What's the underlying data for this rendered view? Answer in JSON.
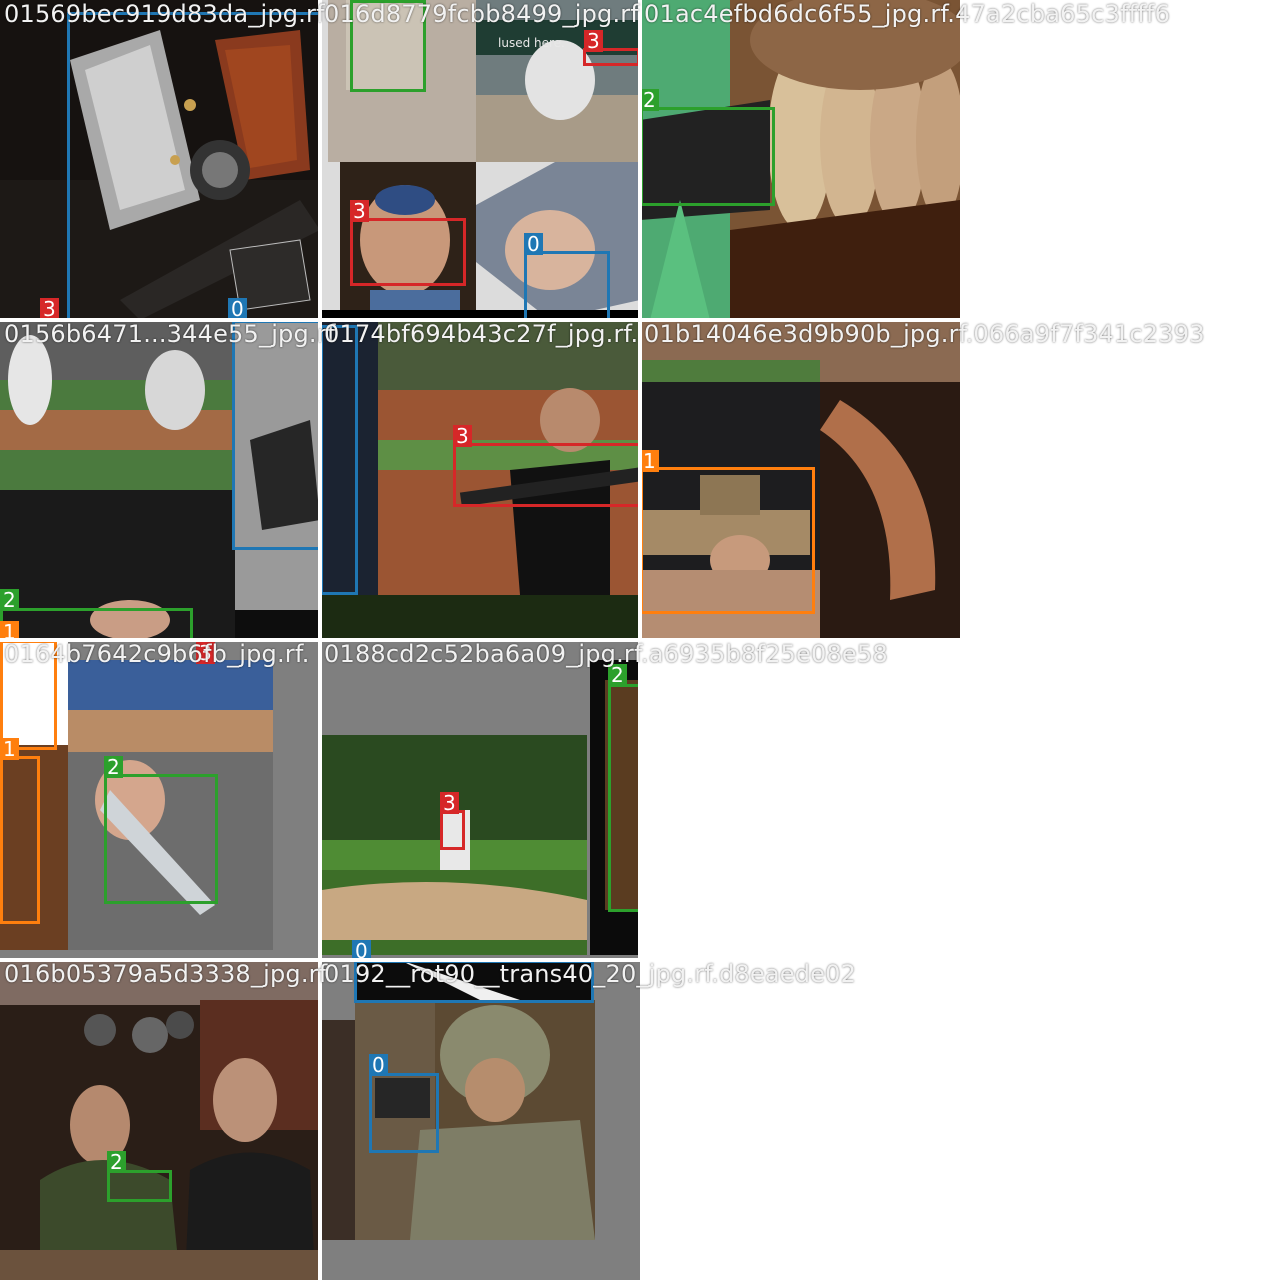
{
  "colors": {
    "class_0": "#1f77b4",
    "class_1": "#ff7f0e",
    "class_2": "#2ca02c",
    "class_3": "#d62728",
    "padding": "#7f7f7f"
  },
  "filenames": [
    "01569bec919d83da_jpg.rf",
    "016d8779fcbb8499_jpg.rf",
    "01ac4efbd6dc6f55_jpg.rf.47a2cba65c3ffff6",
    "0156b6471...344e55_jpg.rf",
    "0174bf694b43c27f_jpg.rf.",
    "01b14046e3d9b90b_jpg.rf.066a9f7f341c2393",
    "0164b7642c9b6fb_jpg.rf.",
    "0188cd2c52ba6a09_jpg.rf.a6935b8f25e08e58",
    "016b05379a5d3338_jpg.rf",
    "0192__rot90__trans40_20_jpg.rf.d8eaede02"
  ],
  "labels": {
    "c0": "0",
    "c1": "1",
    "c2": "2",
    "c3": "3"
  },
  "banner_text": "lused here."
}
